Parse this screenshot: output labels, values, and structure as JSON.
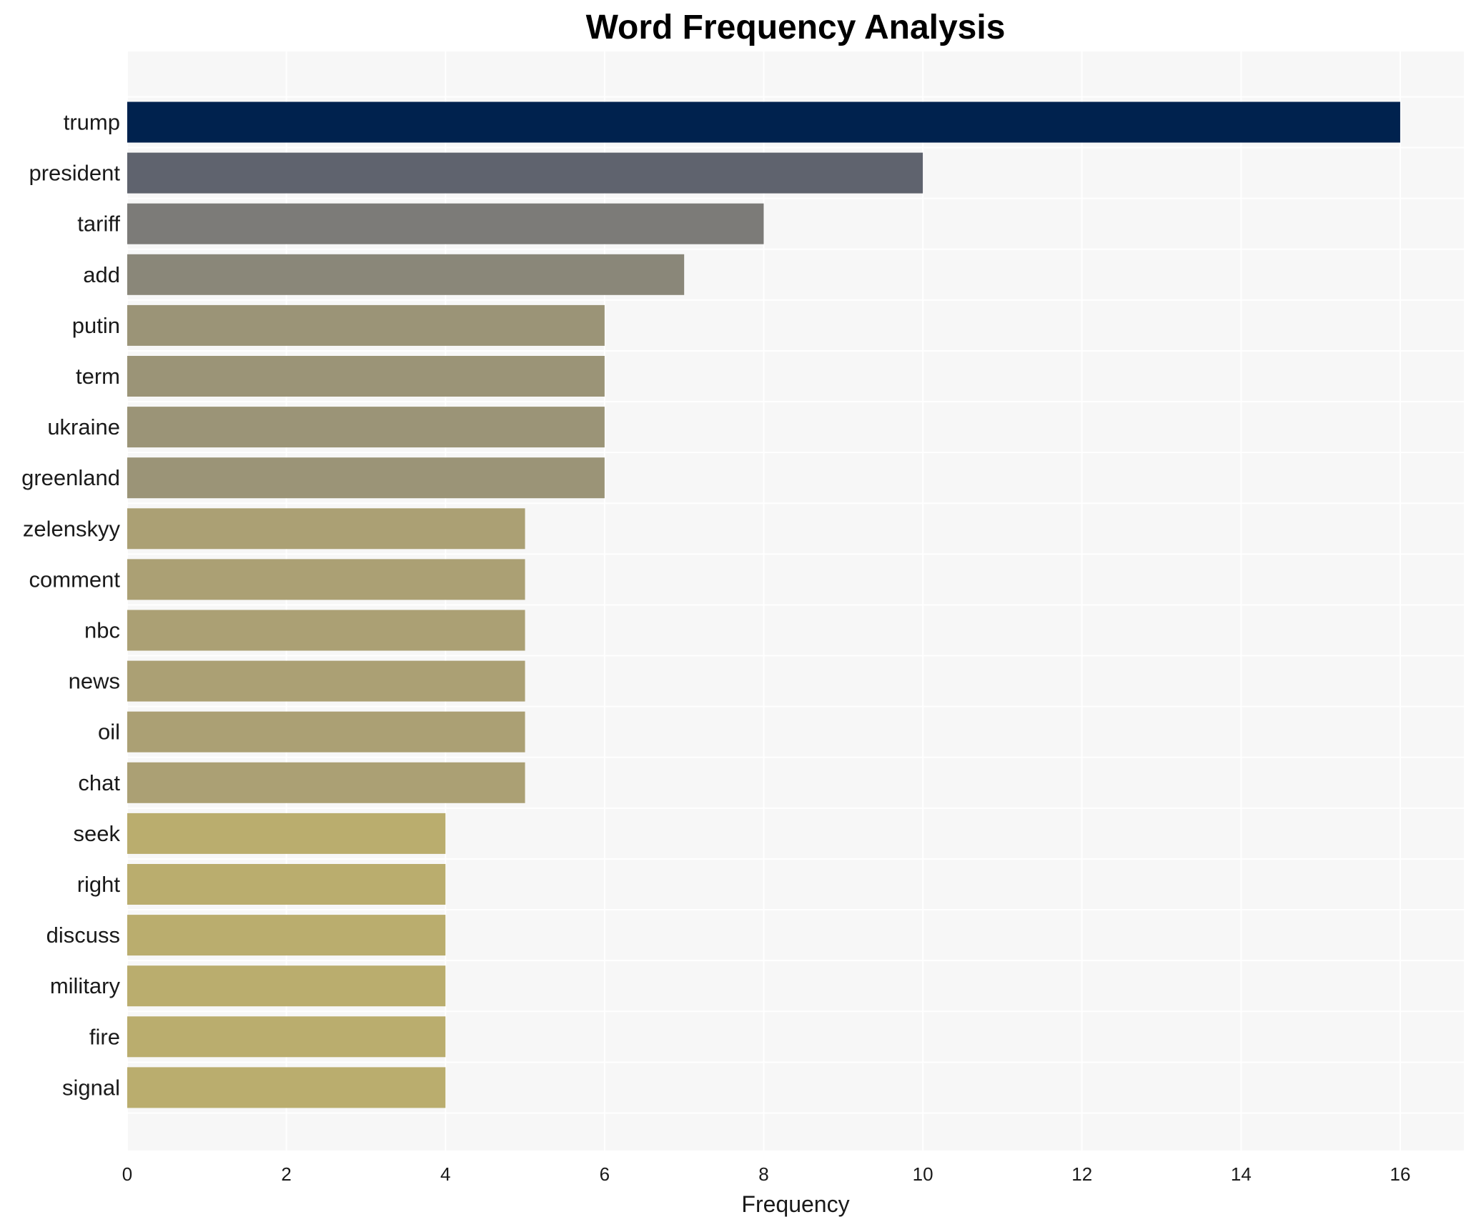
{
  "chart_data": {
    "type": "bar",
    "orientation": "horizontal",
    "title": "Word Frequency Analysis",
    "xlabel": "Frequency",
    "ylabel": "",
    "xlim": [
      0,
      16.8
    ],
    "xticks": [
      0,
      2,
      4,
      6,
      8,
      10,
      12,
      14,
      16
    ],
    "grid": true,
    "categories": [
      "trump",
      "president",
      "tariff",
      "add",
      "putin",
      "term",
      "ukraine",
      "greenland",
      "zelenskyy",
      "comment",
      "nbc",
      "news",
      "oil",
      "chat",
      "seek",
      "right",
      "discuss",
      "military",
      "fire",
      "signal"
    ],
    "values": [
      16,
      10,
      8,
      7,
      6,
      6,
      6,
      6,
      5,
      5,
      5,
      5,
      5,
      5,
      4,
      4,
      4,
      4,
      4,
      4
    ],
    "colors": [
      "#00224e",
      "#5f636e",
      "#7c7b78",
      "#8a8779",
      "#9b9477",
      "#9b9477",
      "#9b9477",
      "#9b9477",
      "#aba074",
      "#aba074",
      "#aba074",
      "#aba074",
      "#aba074",
      "#aba074",
      "#baad6e",
      "#baad6e",
      "#baad6e",
      "#baad6e",
      "#baad6e",
      "#baad6e"
    ],
    "plot_background": "#f7f7f7",
    "grid_color": "#ffffff"
  }
}
